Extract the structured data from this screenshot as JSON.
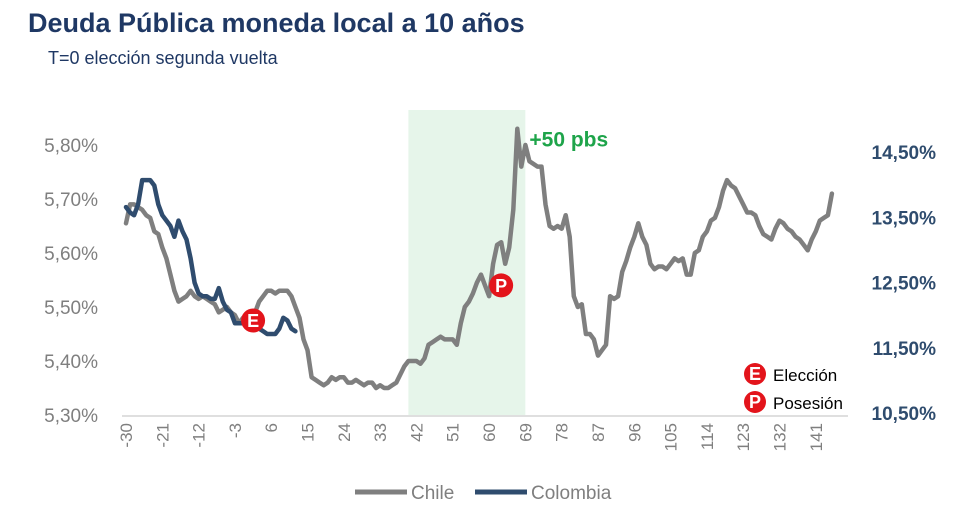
{
  "page": {
    "title": "Deuda Pública moneda local a 10 años",
    "subtitle": "T=0 elección segunda vuelta"
  },
  "chart_data": {
    "type": "line",
    "x_ticks": [
      -30,
      -21,
      -12,
      -3,
      6,
      15,
      24,
      33,
      42,
      51,
      60,
      69,
      78,
      87,
      96,
      105,
      114,
      123,
      132,
      141
    ],
    "xlim": [
      -31,
      148
    ],
    "y_left": {
      "ticks": [
        "5,30%",
        "5,40%",
        "5,50%",
        "5,60%",
        "5,70%",
        "5,80%"
      ],
      "ylim": [
        5.3,
        5.8
      ]
    },
    "y_right": {
      "ticks": [
        "10,50%",
        "11,50%",
        "12,50%",
        "13,50%",
        "14,50%"
      ],
      "ylim": [
        10.5,
        14.5
      ]
    },
    "shaded_region": {
      "x": [
        40,
        69
      ],
      "color": "#e6f5ea"
    },
    "annotation": {
      "text": "+50 pbs",
      "x": 70,
      "y": 5.81,
      "color": "#1ea44a"
    },
    "series": [
      {
        "name": "Chile",
        "axis": "left",
        "color": "#7f7f7f",
        "points": [
          [
            -30,
            5.655
          ],
          [
            -29,
            5.69
          ],
          [
            -28,
            5.69
          ],
          [
            -27,
            5.685
          ],
          [
            -26,
            5.68
          ],
          [
            -25,
            5.67
          ],
          [
            -24,
            5.665
          ],
          [
            -23,
            5.64
          ],
          [
            -22,
            5.635
          ],
          [
            -21,
            5.61
          ],
          [
            -20,
            5.59
          ],
          [
            -19,
            5.56
          ],
          [
            -18,
            5.53
          ],
          [
            -17,
            5.51
          ],
          [
            -16,
            5.515
          ],
          [
            -15,
            5.52
          ],
          [
            -14,
            5.53
          ],
          [
            -13,
            5.52
          ],
          [
            -12,
            5.515
          ],
          [
            -11,
            5.52
          ],
          [
            -10,
            5.515
          ],
          [
            -9,
            5.51
          ],
          [
            -8,
            5.505
          ],
          [
            -7,
            5.49
          ],
          [
            -6,
            5.495
          ],
          [
            -5,
            5.5
          ],
          [
            -4,
            5.49
          ],
          [
            -3,
            5.485
          ],
          [
            -2,
            5.47
          ],
          [
            -1,
            5.48
          ],
          [
            0,
            5.48
          ],
          [
            1,
            5.485
          ],
          [
            2,
            5.49
          ],
          [
            3,
            5.51
          ],
          [
            4,
            5.52
          ],
          [
            5,
            5.53
          ],
          [
            6,
            5.53
          ],
          [
            7,
            5.525
          ],
          [
            8,
            5.53
          ],
          [
            9,
            5.53
          ],
          [
            10,
            5.53
          ],
          [
            11,
            5.52
          ],
          [
            12,
            5.5
          ],
          [
            13,
            5.48
          ],
          [
            14,
            5.44
          ],
          [
            15,
            5.42
          ],
          [
            16,
            5.37
          ],
          [
            17,
            5.365
          ],
          [
            18,
            5.36
          ],
          [
            19,
            5.355
          ],
          [
            20,
            5.36
          ],
          [
            21,
            5.37
          ],
          [
            22,
            5.365
          ],
          [
            23,
            5.37
          ],
          [
            24,
            5.37
          ],
          [
            25,
            5.36
          ],
          [
            26,
            5.36
          ],
          [
            27,
            5.365
          ],
          [
            28,
            5.36
          ],
          [
            29,
            5.355
          ],
          [
            30,
            5.36
          ],
          [
            31,
            5.36
          ],
          [
            32,
            5.35
          ],
          [
            33,
            5.355
          ],
          [
            34,
            5.35
          ],
          [
            35,
            5.35
          ],
          [
            36,
            5.355
          ],
          [
            37,
            5.36
          ],
          [
            38,
            5.375
          ],
          [
            39,
            5.39
          ],
          [
            40,
            5.4
          ],
          [
            41,
            5.4
          ],
          [
            42,
            5.4
          ],
          [
            43,
            5.395
          ],
          [
            44,
            5.405
          ],
          [
            45,
            5.43
          ],
          [
            46,
            5.435
          ],
          [
            47,
            5.44
          ],
          [
            48,
            5.445
          ],
          [
            49,
            5.44
          ],
          [
            50,
            5.44
          ],
          [
            51,
            5.44
          ],
          [
            52,
            5.43
          ],
          [
            53,
            5.47
          ],
          [
            54,
            5.5
          ],
          [
            55,
            5.51
          ],
          [
            56,
            5.525
          ],
          [
            57,
            5.545
          ],
          [
            58,
            5.56
          ],
          [
            59,
            5.54
          ],
          [
            60,
            5.52
          ],
          [
            61,
            5.58
          ],
          [
            62,
            5.615
          ],
          [
            63,
            5.62
          ],
          [
            64,
            5.58
          ],
          [
            65,
            5.61
          ],
          [
            66,
            5.68
          ],
          [
            67,
            5.83
          ],
          [
            68,
            5.76
          ],
          [
            69,
            5.8
          ],
          [
            70,
            5.77
          ],
          [
            71,
            5.765
          ],
          [
            72,
            5.76
          ],
          [
            73,
            5.76
          ],
          [
            74,
            5.69
          ],
          [
            75,
            5.65
          ],
          [
            76,
            5.645
          ],
          [
            77,
            5.65
          ],
          [
            78,
            5.645
          ],
          [
            79,
            5.67
          ],
          [
            80,
            5.63
          ],
          [
            81,
            5.52
          ],
          [
            82,
            5.5
          ],
          [
            83,
            5.505
          ],
          [
            84,
            5.45
          ],
          [
            85,
            5.45
          ],
          [
            86,
            5.44
          ],
          [
            87,
            5.41
          ],
          [
            88,
            5.42
          ],
          [
            89,
            5.43
          ],
          [
            90,
            5.52
          ],
          [
            91,
            5.515
          ],
          [
            92,
            5.52
          ],
          [
            93,
            5.565
          ],
          [
            94,
            5.585
          ],
          [
            95,
            5.61
          ],
          [
            96,
            5.63
          ],
          [
            97,
            5.655
          ],
          [
            98,
            5.63
          ],
          [
            99,
            5.615
          ],
          [
            100,
            5.58
          ],
          [
            101,
            5.57
          ],
          [
            102,
            5.575
          ],
          [
            103,
            5.575
          ],
          [
            104,
            5.57
          ],
          [
            105,
            5.58
          ],
          [
            106,
            5.59
          ],
          [
            107,
            5.585
          ],
          [
            108,
            5.59
          ],
          [
            109,
            5.56
          ],
          [
            110,
            5.56
          ],
          [
            111,
            5.6
          ],
          [
            112,
            5.605
          ],
          [
            113,
            5.63
          ],
          [
            114,
            5.64
          ],
          [
            115,
            5.66
          ],
          [
            116,
            5.665
          ],
          [
            117,
            5.685
          ],
          [
            118,
            5.715
          ],
          [
            119,
            5.735
          ],
          [
            120,
            5.725
          ],
          [
            121,
            5.72
          ],
          [
            122,
            5.705
          ],
          [
            123,
            5.69
          ],
          [
            124,
            5.675
          ],
          [
            125,
            5.675
          ],
          [
            126,
            5.67
          ],
          [
            127,
            5.65
          ],
          [
            128,
            5.635
          ],
          [
            129,
            5.63
          ],
          [
            130,
            5.625
          ],
          [
            131,
            5.645
          ],
          [
            132,
            5.66
          ],
          [
            133,
            5.655
          ],
          [
            134,
            5.645
          ],
          [
            135,
            5.64
          ],
          [
            136,
            5.63
          ],
          [
            137,
            5.625
          ],
          [
            138,
            5.615
          ],
          [
            139,
            5.605
          ],
          [
            140,
            5.625
          ],
          [
            141,
            5.64
          ],
          [
            142,
            5.66
          ],
          [
            143,
            5.665
          ],
          [
            144,
            5.67
          ],
          [
            145,
            5.71
          ]
        ]
      },
      {
        "name": "Colombia",
        "axis": "left",
        "color": "#2f4c6e",
        "points": [
          [
            -30,
            5.685
          ],
          [
            -29,
            5.675
          ],
          [
            -28,
            5.67
          ],
          [
            -27,
            5.69
          ],
          [
            -26,
            5.735
          ],
          [
            -25,
            5.735
          ],
          [
            -24,
            5.735
          ],
          [
            -23,
            5.725
          ],
          [
            -22,
            5.69
          ],
          [
            -21,
            5.67
          ],
          [
            -20,
            5.66
          ],
          [
            -19,
            5.65
          ],
          [
            -18,
            5.63
          ],
          [
            -17,
            5.66
          ],
          [
            -16,
            5.64
          ],
          [
            -15,
            5.625
          ],
          [
            -14,
            5.59
          ],
          [
            -13,
            5.545
          ],
          [
            -12,
            5.525
          ],
          [
            -11,
            5.52
          ],
          [
            -10,
            5.52
          ],
          [
            -9,
            5.515
          ],
          [
            -8,
            5.515
          ],
          [
            -7,
            5.535
          ],
          [
            -6,
            5.51
          ],
          [
            -5,
            5.495
          ],
          [
            -4,
            5.49
          ],
          [
            -3,
            5.47
          ],
          [
            -2,
            5.47
          ],
          [
            -1,
            5.47
          ],
          [
            0,
            5.47
          ],
          [
            1,
            5.475
          ],
          [
            2,
            5.47
          ],
          [
            3,
            5.46
          ],
          [
            4,
            5.455
          ],
          [
            5,
            5.45
          ],
          [
            6,
            5.45
          ],
          [
            7,
            5.45
          ],
          [
            8,
            5.46
          ],
          [
            9,
            5.48
          ],
          [
            10,
            5.475
          ],
          [
            11,
            5.46
          ],
          [
            12,
            5.455
          ]
        ]
      }
    ],
    "markers": [
      {
        "letter": "E",
        "x": 1.5,
        "y": 5.475,
        "color": "#e3141b"
      },
      {
        "letter": "P",
        "x": 63,
        "y": 5.54,
        "color": "#e3141b"
      }
    ],
    "marker_key": [
      {
        "letter": "E",
        "label": "Elección"
      },
      {
        "letter": "P",
        "label": "Posesión"
      }
    ],
    "legend": {
      "placement": "bottom",
      "entries": [
        "Chile",
        "Colombia"
      ]
    }
  }
}
